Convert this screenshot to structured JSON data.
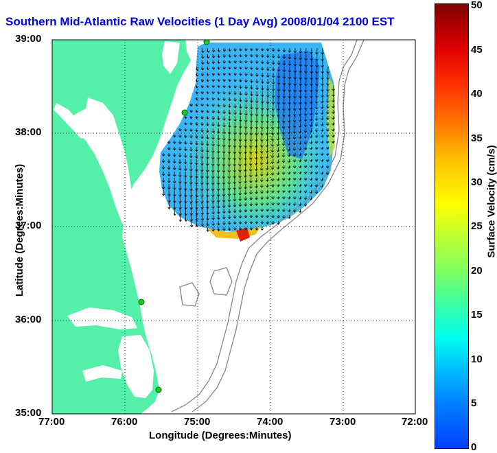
{
  "title": "Southern Mid-Atlantic Raw Velocities (1 Day Avg) 2008/01/04 2100 EST",
  "map": {
    "x_axis_label": "Longitude (Degrees:Minutes)",
    "y_axis_label": "Latitude (Degrees:Minutes)",
    "x_ticks": [
      "77:00",
      "76:00",
      "75:00",
      "74:00",
      "73:00",
      "72:00"
    ],
    "y_ticks": [
      "39:00",
      "38:00",
      "37:00",
      "36:00",
      "35:00"
    ],
    "lon_range": [
      -77,
      -72
    ],
    "lat_range": [
      35,
      39
    ],
    "grid": "dotted",
    "land_color": "#55f0a8",
    "contour_color": "#888888",
    "station_color": "#22cc22"
  },
  "colorbar": {
    "label": "Surface Velocity (cm/s)",
    "ticks": [
      "0",
      "5",
      "10",
      "15",
      "20",
      "25",
      "30",
      "35",
      "40",
      "45",
      "50"
    ],
    "range": [
      0,
      50
    ],
    "colormap": "jet"
  }
}
